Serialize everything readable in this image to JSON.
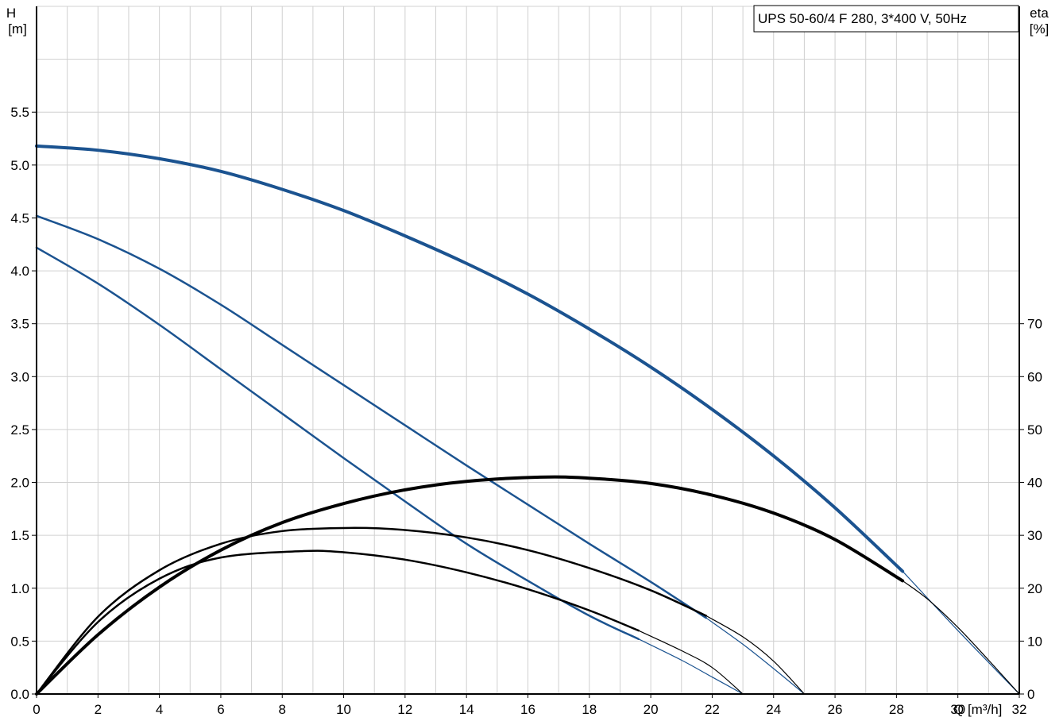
{
  "chart_data": {
    "type": "line",
    "title": "UPS 50-60/4 F 280, 3*400 V, 50Hz",
    "y_left_label": [
      "H",
      "[m]"
    ],
    "y_right_label": [
      "eta",
      "[%]"
    ],
    "x_label": "Q [m³/h]",
    "xlim": [
      0,
      32
    ],
    "ylim_left": [
      0,
      6.5
    ],
    "ylim_right": [
      0,
      130
    ],
    "x_ticks": [
      0,
      2,
      4,
      6,
      8,
      10,
      12,
      14,
      16,
      18,
      20,
      22,
      24,
      26,
      28,
      30,
      32
    ],
    "x_tick_labels": [
      "0",
      "2",
      "4",
      "6",
      "8",
      "10",
      "12",
      "14",
      "16",
      "18",
      "20",
      "22",
      "24",
      "26",
      "28",
      "30",
      "32"
    ],
    "y_left_ticks": [
      0.0,
      0.5,
      1.0,
      1.5,
      2.0,
      2.5,
      3.0,
      3.5,
      4.0,
      4.5,
      5.0,
      5.5
    ],
    "y_left_tick_labels": [
      "0.0",
      "0.5",
      "1.0",
      "1.5",
      "2.0",
      "2.5",
      "3.0",
      "3.5",
      "4.0",
      "4.5",
      "5.0",
      "5.5"
    ],
    "y_right_ticks": [
      0,
      10,
      20,
      30,
      40,
      50,
      60,
      70
    ],
    "y_right_tick_labels": [
      "0",
      "10",
      "20",
      "30",
      "40",
      "50",
      "60",
      "70"
    ],
    "grid": true,
    "colors": {
      "head": "#1b5390",
      "efficiency": "#000000",
      "grid": "#d0d0d0",
      "axis": "#000000"
    },
    "series": [
      {
        "kind": "head",
        "axis": "left",
        "emphasis": "thick",
        "points": [
          [
            0,
            5.18
          ],
          [
            2,
            5.14
          ],
          [
            4,
            5.06
          ],
          [
            6,
            4.94
          ],
          [
            8,
            4.77
          ],
          [
            10,
            4.57
          ],
          [
            12,
            4.33
          ],
          [
            14,
            4.07
          ],
          [
            16,
            3.78
          ],
          [
            18,
            3.45
          ],
          [
            20,
            3.09
          ],
          [
            22,
            2.69
          ],
          [
            24,
            2.25
          ],
          [
            26,
            1.76
          ],
          [
            28.2,
            1.16
          ]
        ],
        "tail": [
          [
            28.2,
            1.16
          ],
          [
            30,
            0.6
          ],
          [
            32,
            0.0
          ]
        ]
      },
      {
        "kind": "head",
        "axis": "left",
        "emphasis": "normal",
        "points": [
          [
            0,
            4.52
          ],
          [
            2,
            4.3
          ],
          [
            4,
            4.02
          ],
          [
            6,
            3.68
          ],
          [
            8,
            3.3
          ],
          [
            10,
            2.92
          ],
          [
            12,
            2.54
          ],
          [
            14,
            2.16
          ],
          [
            16,
            1.79
          ],
          [
            18,
            1.42
          ],
          [
            20,
            1.06
          ],
          [
            21.8,
            0.72
          ]
        ],
        "tail": [
          [
            21.8,
            0.72
          ],
          [
            23,
            0.47
          ],
          [
            24,
            0.24
          ],
          [
            25,
            0.0
          ]
        ]
      },
      {
        "kind": "head",
        "axis": "left",
        "emphasis": "normal",
        "points": [
          [
            0,
            4.22
          ],
          [
            2,
            3.88
          ],
          [
            4,
            3.49
          ],
          [
            6,
            3.07
          ],
          [
            8,
            2.65
          ],
          [
            10,
            2.23
          ],
          [
            12,
            1.82
          ],
          [
            14,
            1.42
          ],
          [
            16,
            1.07
          ],
          [
            18,
            0.74
          ],
          [
            19.6,
            0.52
          ]
        ],
        "tail": [
          [
            19.6,
            0.52
          ],
          [
            21,
            0.32
          ],
          [
            22,
            0.16
          ],
          [
            23,
            0.0
          ]
        ]
      },
      {
        "kind": "efficiency",
        "axis": "right",
        "emphasis": "thick",
        "points": [
          [
            0,
            0
          ],
          [
            2,
            11.2
          ],
          [
            4,
            20.2
          ],
          [
            6,
            27.2
          ],
          [
            8,
            32.4
          ],
          [
            10,
            36.0
          ],
          [
            12,
            38.6
          ],
          [
            14,
            40.2
          ],
          [
            16.4,
            41.0
          ],
          [
            18,
            40.8
          ],
          [
            20,
            39.8
          ],
          [
            22,
            37.6
          ],
          [
            24,
            34.2
          ],
          [
            26,
            29.2
          ],
          [
            28.2,
            21.4
          ]
        ],
        "tail": [
          [
            28.2,
            21.4
          ],
          [
            29,
            18.0
          ],
          [
            30,
            12.6
          ],
          [
            31,
            6.4
          ],
          [
            32,
            0
          ]
        ]
      },
      {
        "kind": "efficiency",
        "axis": "right",
        "emphasis": "normal",
        "points": [
          [
            0,
            0
          ],
          [
            2,
            14.6
          ],
          [
            4,
            23.4
          ],
          [
            6,
            28.4
          ],
          [
            8,
            30.8
          ],
          [
            10.2,
            31.4
          ],
          [
            12,
            31.0
          ],
          [
            14,
            29.6
          ],
          [
            16,
            27.2
          ],
          [
            18,
            23.8
          ],
          [
            20,
            19.6
          ],
          [
            21.8,
            14.8
          ]
        ],
        "tail": [
          [
            21.8,
            14.8
          ],
          [
            23,
            10.8
          ],
          [
            24,
            6.2
          ],
          [
            25,
            0
          ]
        ]
      },
      {
        "kind": "efficiency",
        "axis": "right",
        "emphasis": "normal",
        "points": [
          [
            0,
            0
          ],
          [
            2,
            13.6
          ],
          [
            4,
            21.8
          ],
          [
            6,
            25.8
          ],
          [
            8.6,
            27.0
          ],
          [
            10,
            26.8
          ],
          [
            12,
            25.4
          ],
          [
            14,
            23.0
          ],
          [
            16,
            19.8
          ],
          [
            18,
            15.8
          ],
          [
            19.6,
            12.0
          ]
        ],
        "tail": [
          [
            19.6,
            12.0
          ],
          [
            21,
            8.2
          ],
          [
            22,
            5.0
          ],
          [
            23,
            0
          ]
        ]
      }
    ]
  }
}
